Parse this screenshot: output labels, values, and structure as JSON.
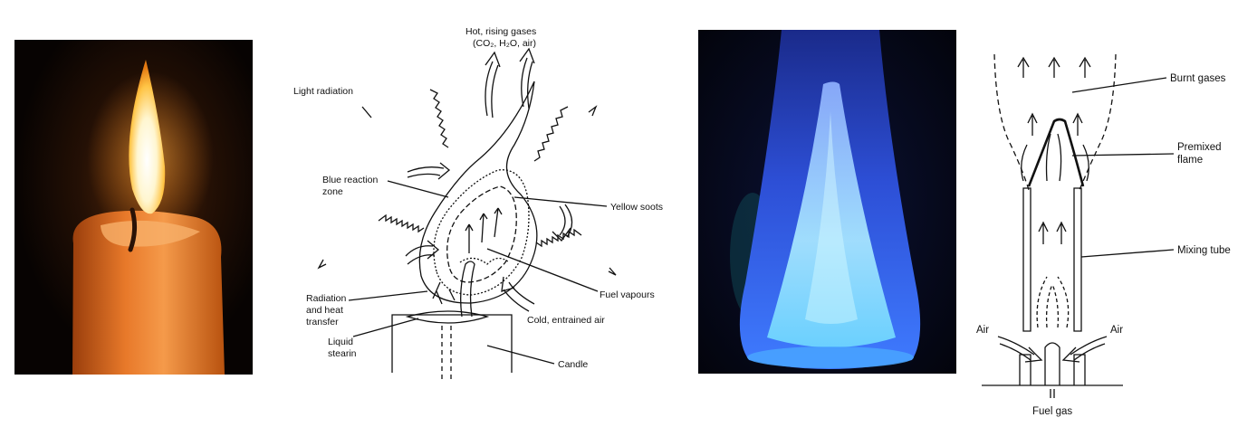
{
  "candle_diagram": {
    "labels": {
      "hot_gases_line1": "Hot, rising gases",
      "hot_gases_line2": "(CO₂, H₂O, air)",
      "light_radiation": "Light radiation",
      "blue_zone_line1": "Blue reaction",
      "blue_zone_line2": "zone",
      "yellow_soots": "Yellow soots",
      "radiation_line1": "Radiation",
      "radiation_line2": "and heat",
      "radiation_line3": "transfer",
      "fuel_vapours": "Fuel vapours",
      "cold_air": "Cold, entrained air",
      "liquid_line1": "Liquid",
      "liquid_line2": "stearin",
      "candle": "Candle"
    }
  },
  "premixed_diagram": {
    "labels": {
      "burnt_gases": "Burnt gases",
      "premixed_line1": "Premixed",
      "premixed_line2": "flame",
      "mixing_tube": "Mixing tube",
      "air_left": "Air",
      "air_right": "Air",
      "fuel_gas": "Fuel gas"
    }
  }
}
